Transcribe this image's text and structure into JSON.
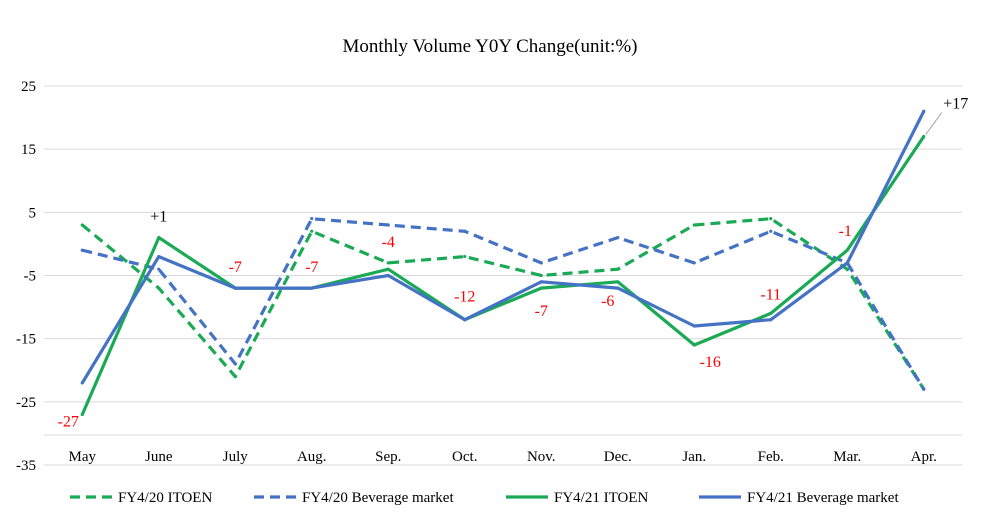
{
  "chart_data": {
    "type": "line",
    "title": "Monthly Volume Y0Y Change(unit:%)",
    "xlabel": "",
    "ylabel": "",
    "categories": [
      "May",
      "June",
      "July",
      "Aug.",
      "Sep.",
      "Oct.",
      "Nov.",
      "Dec.",
      "Jan.",
      "Feb.",
      "Mar.",
      "Apr."
    ],
    "ylim": [
      -35,
      25
    ],
    "yticks": [
      25,
      15,
      5,
      -5,
      -15,
      -25,
      -35
    ],
    "grid": true,
    "legend_position": "bottom",
    "series": [
      {
        "name": "FY4/20 ITOEN",
        "color": "#1aaa55",
        "style": "dashed",
        "values": [
          3,
          -7,
          -21,
          2,
          -3,
          -2,
          -5,
          -4,
          3,
          4,
          -4,
          -23
        ]
      },
      {
        "name": "FY4/20 Beverage market",
        "color": "#4472c4",
        "style": "dashed",
        "values": [
          -1,
          -4,
          -19,
          4,
          3,
          2,
          -3,
          1,
          -3,
          2,
          -3,
          -23
        ]
      },
      {
        "name": "FY4/21 ITOEN",
        "color": "#1aaa55",
        "style": "solid",
        "values": [
          -27,
          1,
          -7,
          -7,
          -4,
          -12,
          -7,
          -6,
          -16,
          -11,
          -1,
          17
        ]
      },
      {
        "name": "FY4/21 Beverage market",
        "color": "#4472c4",
        "style": "solid",
        "values": [
          -22,
          -2,
          -7,
          -7,
          -5,
          -12,
          -6,
          -7,
          -13,
          -12,
          -3,
          21
        ]
      }
    ],
    "annotations": [
      {
        "text": "-27",
        "color": "#ff0000",
        "category": "May",
        "value": -27
      },
      {
        "text": "+1",
        "color": "#000000",
        "category": "June",
        "value": 1
      },
      {
        "text": "-7",
        "color": "#ff0000",
        "category": "July",
        "value": -7
      },
      {
        "text": "-7",
        "color": "#ff0000",
        "category": "Aug.",
        "value": -7
      },
      {
        "text": "-4",
        "color": "#ff0000",
        "category": "Sep.",
        "value": -4
      },
      {
        "text": "-12",
        "color": "#ff0000",
        "category": "Oct.",
        "value": -12
      },
      {
        "text": "-7",
        "color": "#ff0000",
        "category": "Nov.",
        "value": -7
      },
      {
        "text": "-6",
        "color": "#ff0000",
        "category": "Dec.",
        "value": -6
      },
      {
        "text": "-16",
        "color": "#ff0000",
        "category": "Jan.",
        "value": -16
      },
      {
        "text": "-11",
        "color": "#ff0000",
        "category": "Feb.",
        "value": -11
      },
      {
        "text": "-1",
        "color": "#ff0000",
        "category": "Mar.",
        "value": -1
      },
      {
        "text": "+17",
        "color": "#000000",
        "category": "Apr.",
        "value": 17
      }
    ]
  }
}
